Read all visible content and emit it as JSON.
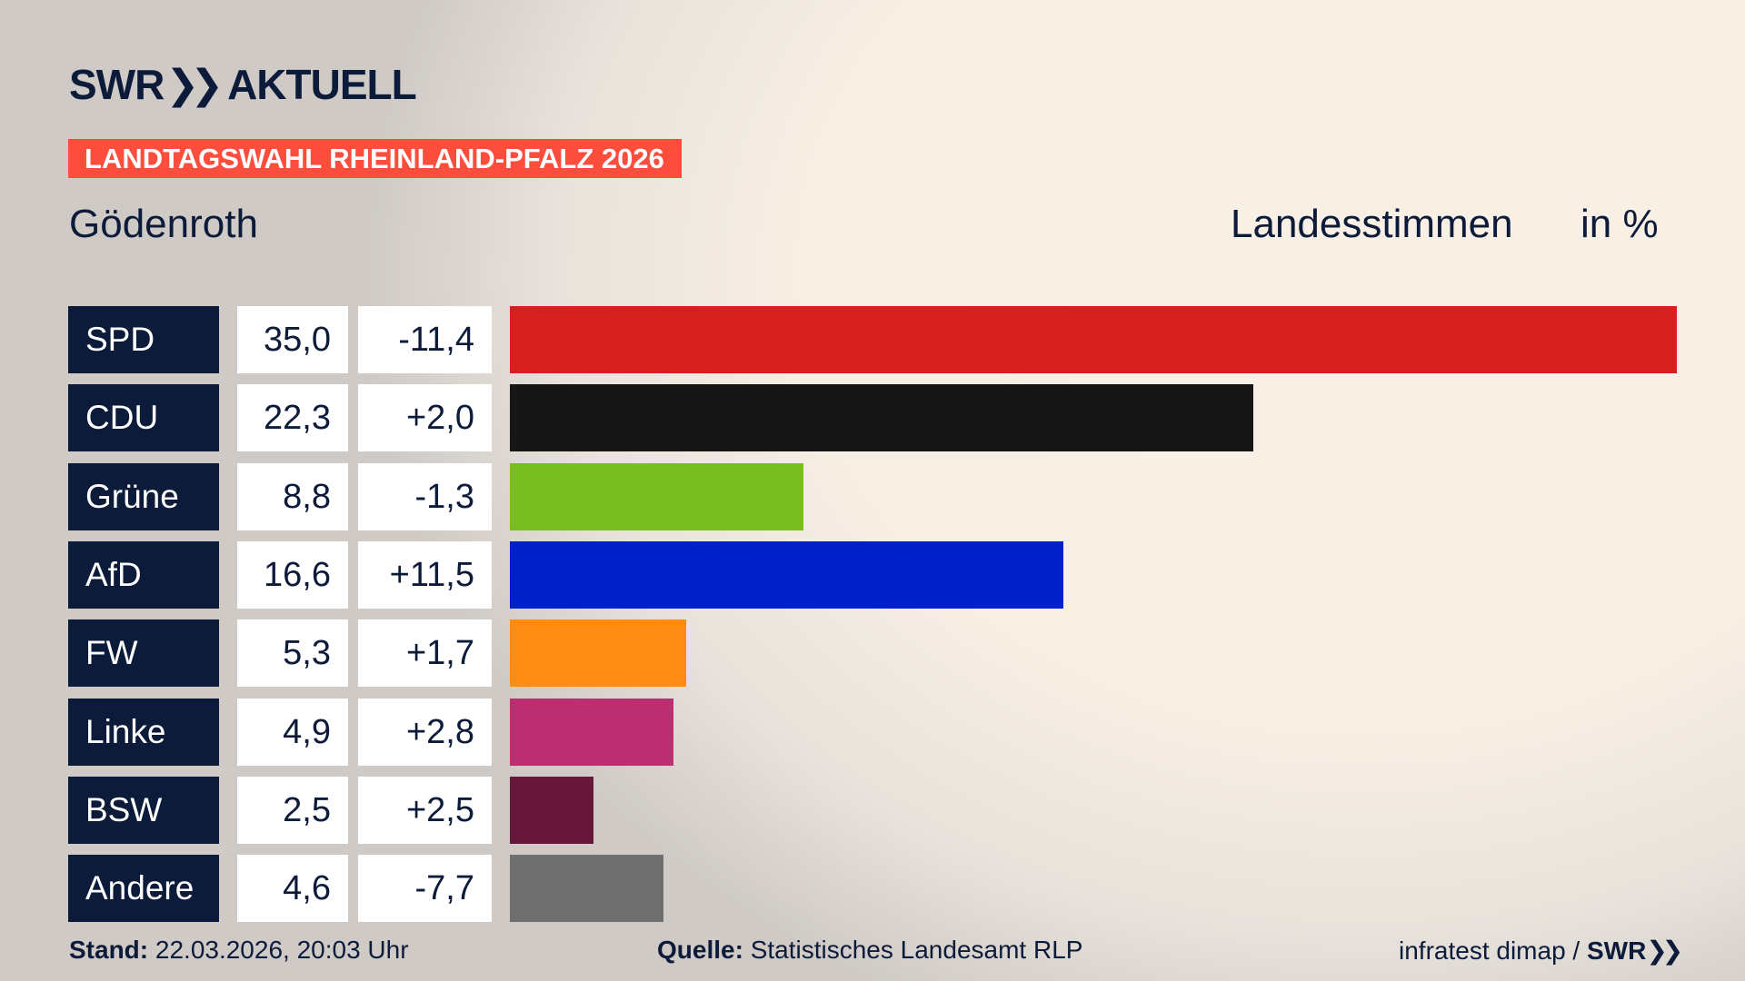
{
  "header": {
    "logo_text": "SWR",
    "logo_suffix": "AKTUELL",
    "banner": "LANDTAGSWAHL RHEINLAND-PFALZ 2026",
    "place": "Gödenroth",
    "measure": "Landesstimmen",
    "unit": "in %"
  },
  "chart_data": {
    "type": "bar",
    "orientation": "horizontal",
    "categories": [
      "SPD",
      "CDU",
      "Grüne",
      "AfD",
      "FW",
      "Linke",
      "BSW",
      "Andere"
    ],
    "values": [
      35.0,
      22.3,
      8.8,
      16.6,
      5.3,
      4.9,
      2.5,
      4.6
    ],
    "value_labels": [
      "35,0",
      "22,3",
      "8,8",
      "16,6",
      "5,3",
      "4,9",
      "2,5",
      "4,6"
    ],
    "changes": [
      -11.4,
      2.0,
      -1.3,
      11.5,
      1.7,
      2.8,
      2.5,
      -7.7
    ],
    "change_labels": [
      "-11,4",
      "+2,0",
      "-1,3",
      "+11,5",
      "+1,7",
      "+2,8",
      "+2,5",
      "-7,7"
    ],
    "colors": [
      "#d71f1f",
      "#161616",
      "#78be1e",
      "#0021c8",
      "#ff8c15",
      "#bb2f72",
      "#67173a",
      "#6f6f6f"
    ],
    "grid": false
  },
  "footer": {
    "stand_label": "Stand:",
    "stand_value": "22.03.2026, 20:03 Uhr",
    "source_label": "Quelle:",
    "source_value": "Statistisches Landesamt RLP",
    "credit": "infratest dimap /",
    "credit_logo": "SWR"
  }
}
